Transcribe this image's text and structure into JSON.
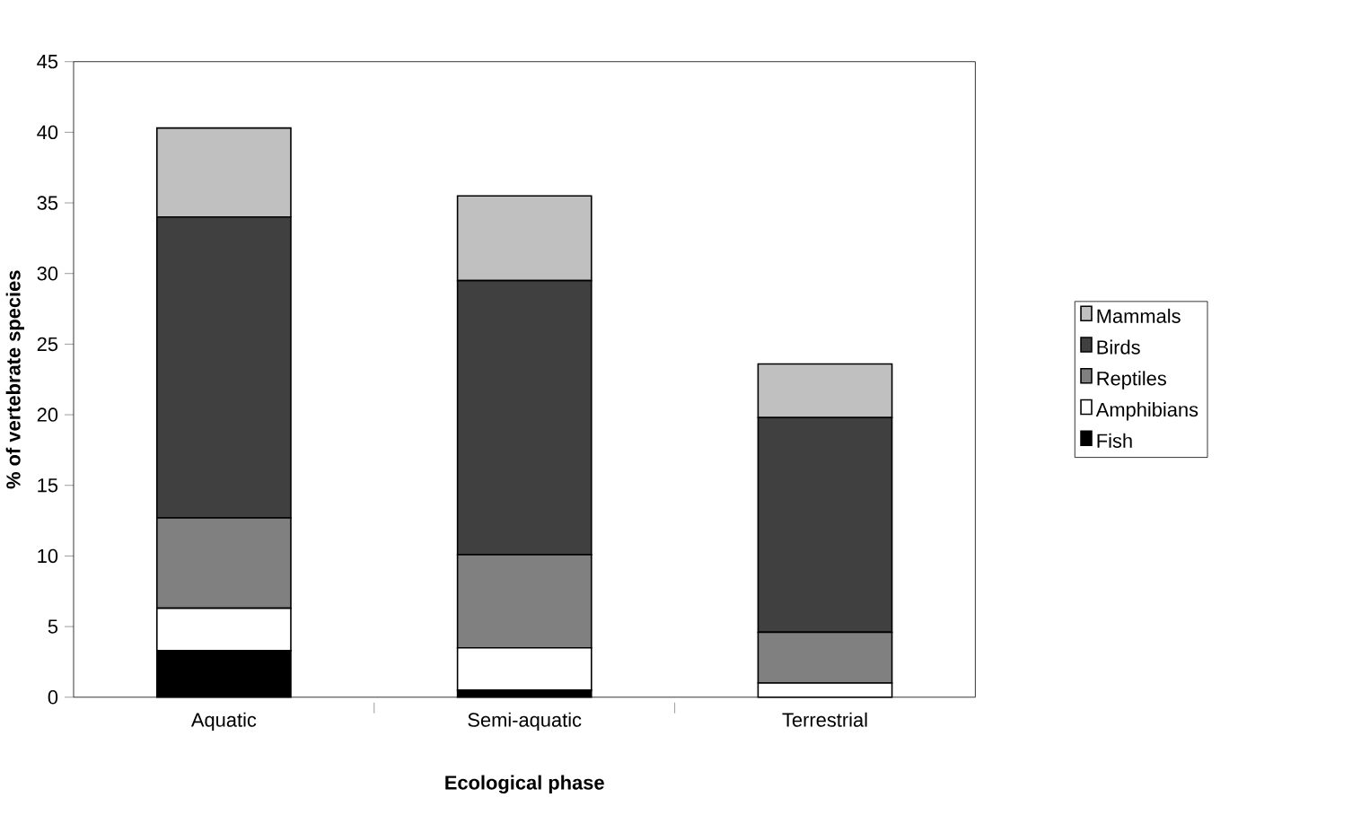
{
  "chart_data": {
    "type": "bar",
    "stacked": true,
    "xlabel": "Ecological phase",
    "ylabel": "% of vertebrate species",
    "categories": [
      "Aquatic",
      "Semi-aquatic",
      "Terrestrial"
    ],
    "series": [
      {
        "name": "Fish",
        "color": "#000000",
        "values": [
          3.3,
          0.5,
          0
        ]
      },
      {
        "name": "Amphibians",
        "color": "#ffffff",
        "values": [
          3.0,
          3.0,
          1.0
        ]
      },
      {
        "name": "Reptiles",
        "color": "#808080",
        "values": [
          6.4,
          6.6,
          3.6
        ]
      },
      {
        "name": "Birds",
        "color": "#404040",
        "values": [
          21.3,
          19.4,
          15.2
        ]
      },
      {
        "name": "Mammals",
        "color": "#c0c0c0",
        "values": [
          6.3,
          6.0,
          3.8
        ]
      }
    ],
    "ylim": [
      0,
      45
    ],
    "yticks": [
      0,
      5,
      10,
      15,
      20,
      25,
      30,
      35,
      40,
      45
    ],
    "grid": false,
    "legend": "right"
  }
}
